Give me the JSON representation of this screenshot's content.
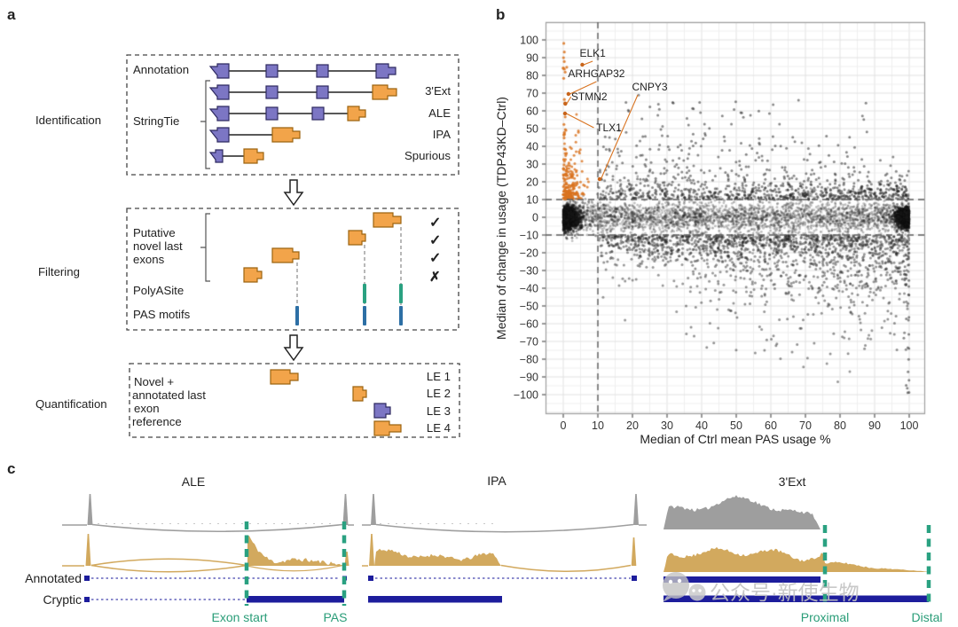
{
  "panels": {
    "a": {
      "letter": "a",
      "side_labels": [
        "Identification",
        "Filtering",
        "Quantification"
      ],
      "annotation_label": "Annotation",
      "stringtie_label": "StringTie",
      "variant_labels": [
        "3'Ext",
        "ALE",
        "IPA",
        "Spurious"
      ],
      "filter_bracket_lines": [
        "Putative",
        "novel last",
        "exons"
      ],
      "polyasite_label": "PolyASite",
      "pas_motifs_label": "PAS motifs",
      "filter_checks": [
        "✓",
        "✓",
        "✓",
        "✗"
      ],
      "quant_ref_lines": [
        "Novel +",
        "annotated last",
        "exon",
        "reference"
      ],
      "le_labels": [
        "LE 1",
        "LE 2",
        "LE 3",
        "LE 4"
      ]
    },
    "b": {
      "letter": "b",
      "chart_data": {
        "type": "scatter",
        "xlabel": "Median of Ctrl mean PAS usage %",
        "ylabel": "Median of change in usage (TDP43KD–Ctrl)",
        "x_ticks": [
          0,
          10,
          20,
          30,
          40,
          50,
          60,
          70,
          80,
          90,
          100
        ],
        "y_ticks": [
          -100,
          -90,
          -80,
          -70,
          -60,
          -50,
          -40,
          -30,
          -20,
          -10,
          0,
          10,
          20,
          30,
          40,
          50,
          60,
          70,
          80,
          90,
          100
        ],
        "xlim": [
          -5.1,
          104.6
        ],
        "ylim": [
          -111,
          110
        ],
        "grid_step_minor": 5,
        "grid_step_major": 10,
        "thresholds": {
          "x": 10,
          "y_upper": 10,
          "y_lower": -10
        },
        "labeled_genes": [
          {
            "name": "ELK1",
            "x": 5.5,
            "y": 86,
            "label": [
              8.5,
              90.5
            ],
            "anchor": "b"
          },
          {
            "name": "ARHGAP32",
            "x": 1.5,
            "y": 69.5,
            "label": [
              9.6,
              79
            ],
            "anchor": "b"
          },
          {
            "name": "STMN2",
            "x": 0.6,
            "y": 64,
            "label": [
              7.5,
              66
            ],
            "anchor": "l"
          },
          {
            "name": "CNPY3",
            "x": 10.5,
            "y": 21.5,
            "label": [
              25,
              71.5
            ],
            "anchor": "bl"
          },
          {
            "name": "TLX1",
            "x": 0.5,
            "y": 58.5,
            "label": [
              13.2,
              48.5
            ],
            "anchor": "l"
          }
        ],
        "point_color": "#1c1c1c",
        "highlight_color": "#d9731f",
        "seed": 20,
        "clusters": [
          {
            "name": "left-dense",
            "n": 1200,
            "color": "#101010",
            "alpha": 0.5,
            "r": 1.4,
            "x": [
              "halfnorm",
              0,
              2.2,
              1,
              12
            ],
            "y": [
              "norm",
              -0.5,
              3.4
            ]
          },
          {
            "name": "right-dense",
            "n": 900,
            "color": "#101010",
            "alpha": 0.5,
            "r": 1.4,
            "x": [
              "halfnorm",
              100,
              2.0,
              -1,
              12
            ],
            "y": [
              "norm",
              0,
              3.0
            ]
          },
          {
            "name": "mid-band",
            "n": 2400,
            "color": "#1c1c1c",
            "alpha": 0.27,
            "r": 1.4,
            "x": [
              "uni",
              0,
              100
            ],
            "y": [
              "norm",
              0,
              4.3
            ]
          },
          {
            "name": "band-fringe",
            "n": 520,
            "color": "#1c1c1c",
            "alpha": 0.34,
            "r": 1.4,
            "x": [
              "uni",
              1,
              100
            ],
            "y": [
              "norm",
              0,
              7.5
            ]
          },
          {
            "name": "upper-band",
            "n": 800,
            "color": "#1c1c1c",
            "alpha": 0.5,
            "r": 1.5,
            "x": [
              "pow",
              10,
              100,
              0.95
            ],
            "y": [
              "expupx",
              10,
              9,
              -0.04,
              85
            ]
          },
          {
            "name": "upper-sparse",
            "n": 90,
            "color": "#2a2a2a",
            "alpha": 0.55,
            "r": 1.5,
            "x": [
              "uni",
              12,
              88
            ],
            "y": [
              "uni",
              28,
              66
            ]
          },
          {
            "name": "lower-band",
            "n": 1500,
            "color": "#1c1c1c",
            "alpha": 0.45,
            "r": 1.5,
            "x": [
              "pow",
              10,
              100,
              0.8
            ],
            "y": [
              "expdownx",
              -10,
              5,
              0.1,
              -103
            ]
          },
          {
            "name": "lower-sparse",
            "n": 110,
            "color": "#2a2a2a",
            "alpha": 0.5,
            "r": 1.5,
            "x": [
              "uni",
              35,
              100
            ],
            "y": [
              "uni",
              -78,
              -22
            ]
          },
          {
            "name": "right-column",
            "n": 30,
            "color": "#2a2a2a",
            "alpha": 0.55,
            "r": 1.5,
            "x": [
              "halfnorm",
              100,
              0.8,
              -1,
              5
            ],
            "y": [
              "uni",
              -102,
              -8
            ]
          },
          {
            "name": "tdp43-cryptic-orange",
            "n": 210,
            "color": "#d9731f",
            "alpha": 0.8,
            "r": 1.5,
            "x": [
              "halfnorm",
              0,
              2.7,
              1,
              10
            ],
            "y": [
              "expup",
              10,
              11,
              48
            ]
          },
          {
            "name": "orange-left-column",
            "n": 26,
            "color": "#d9731f",
            "alpha": 0.85,
            "r": 1.6,
            "x": [
              "halfnorm",
              0,
              0.6,
              1,
              3
            ],
            "y": [
              "uni",
              26,
              101
            ]
          }
        ]
      }
    },
    "c": {
      "letter": "c",
      "titles": [
        "ALE",
        "IPA",
        "3'Ext"
      ],
      "track_labels": [
        "Annotated",
        "Cryptic"
      ],
      "green_labels": [
        "Exon start",
        "PAS",
        "Proximal",
        "Distal"
      ],
      "coverage_seed": 11
    }
  },
  "watermark": {
    "icon": "wechat-icon",
    "text": "公众号·新使生物"
  },
  "colors": {
    "purple_fill": "#7c76c4",
    "purple_stroke": "#2e2a60",
    "orange_fill": "#f2a44a",
    "orange_stroke": "#9c6410",
    "teal_green": "#2aa181",
    "check_green": "#35b98e",
    "cross_red": "#e03c31",
    "pas_blue": "#2d6fa5",
    "navy": "#1d1d9c",
    "gold": "#d2a95e",
    "gray_cov": "#9e9e9e",
    "scatter_orange": "#d9731f",
    "green_text": "#2a9d78",
    "box_stroke": "#444444"
  }
}
